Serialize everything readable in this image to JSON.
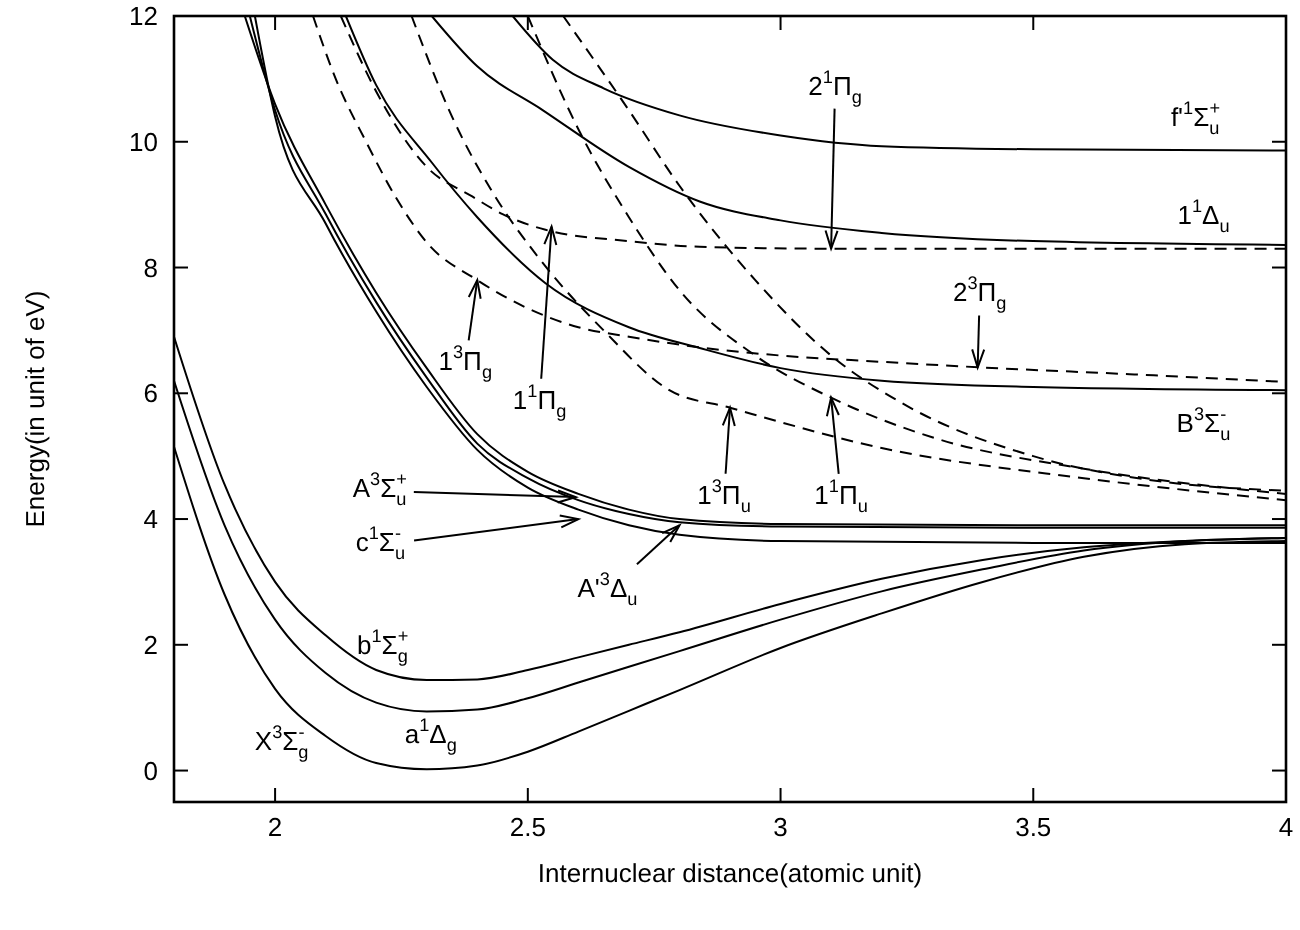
{
  "chart_data": {
    "type": "line",
    "xlabel": "Internuclear distance(atomic unit)",
    "ylabel": "Energy(in unit of eV)",
    "xlim": [
      1.8,
      4
    ],
    "ylim": [
      -0.5,
      12
    ],
    "xticks": [
      2,
      2.5,
      3,
      3.5,
      4
    ],
    "yticks": [
      0,
      2,
      4,
      6,
      8,
      10,
      12
    ],
    "grid": false,
    "series": [
      {
        "color": "#000000",
        "line_style": "solid",
        "x": [
          1.8,
          1.9,
          2.0,
          2.1,
          2.2,
          2.3,
          2.4,
          2.5,
          2.6,
          2.7,
          2.8,
          3.0,
          3.2,
          3.4,
          3.6,
          3.8,
          4.0
        ],
        "values": [
          5.15,
          2.8,
          1.3,
          0.55,
          0.12,
          0.02,
          0.08,
          0.3,
          0.62,
          0.95,
          1.28,
          1.95,
          2.5,
          3.0,
          3.4,
          3.6,
          3.65
        ]
      },
      {
        "color": "#000000",
        "line_style": "solid",
        "x": [
          1.8,
          1.9,
          2.0,
          2.1,
          2.2,
          2.3,
          2.4,
          2.5,
          2.6,
          2.7,
          2.8,
          3.0,
          3.2,
          3.4,
          3.6,
          3.8,
          4.0
        ],
        "values": [
          6.2,
          3.9,
          2.4,
          1.55,
          1.08,
          0.94,
          0.97,
          1.15,
          1.4,
          1.65,
          1.9,
          2.4,
          2.85,
          3.2,
          3.5,
          3.65,
          3.7
        ]
      },
      {
        "color": "#000000",
        "line_style": "solid",
        "x": [
          1.8,
          1.9,
          2.0,
          2.1,
          2.2,
          2.3,
          2.4,
          2.5,
          2.6,
          2.7,
          2.8,
          3.0,
          3.2,
          3.4,
          3.6,
          3.8,
          4.0
        ],
        "values": [
          6.9,
          4.55,
          3.0,
          2.15,
          1.6,
          1.44,
          1.45,
          1.6,
          1.8,
          2.0,
          2.2,
          2.65,
          3.05,
          3.35,
          3.55,
          3.65,
          3.7
        ]
      },
      {
        "color": "#000000",
        "line_style": "solid",
        "x": [
          1.94,
          2.0,
          2.1,
          2.2,
          2.3,
          2.4,
          2.5,
          2.6,
          2.7,
          2.8,
          3.0,
          3.5,
          4.0
        ],
        "values": [
          12,
          10.6,
          9.0,
          7.6,
          6.4,
          5.35,
          4.75,
          4.4,
          4.15,
          4.0,
          3.92,
          3.9,
          3.9
        ]
      },
      {
        "color": "#000000",
        "line_style": "solid",
        "x": [
          1.95,
          2.0,
          2.1,
          2.2,
          2.3,
          2.4,
          2.5,
          2.6,
          2.7,
          2.8,
          3.0,
          3.5,
          4.0
        ],
        "values": [
          12,
          10.5,
          8.85,
          7.45,
          6.25,
          5.2,
          4.65,
          4.3,
          4.08,
          3.95,
          3.88,
          3.86,
          3.86
        ]
      },
      {
        "color": "#000000",
        "line_style": "solid",
        "x": [
          1.96,
          2.0,
          2.1,
          2.2,
          2.3,
          2.4,
          2.5,
          2.6,
          2.7,
          2.8,
          3.0,
          3.5,
          4.0
        ],
        "values": [
          12,
          10.4,
          8.7,
          7.3,
          6.1,
          5.1,
          4.5,
          4.15,
          3.9,
          3.75,
          3.65,
          3.62,
          3.62
        ]
      },
      {
        "color": "#000000",
        "line_style": "solid",
        "x": [
          2.47,
          2.55,
          2.65,
          2.8,
          3.0,
          3.2,
          3.5,
          4.0
        ],
        "values": [
          12,
          11.3,
          10.85,
          10.42,
          10.1,
          9.93,
          9.88,
          9.86
        ]
      },
      {
        "color": "#000000",
        "line_style": "solid",
        "x": [
          2.31,
          2.4,
          2.53,
          2.7,
          2.84,
          3.0,
          3.2,
          3.5,
          4.0
        ],
        "values": [
          12,
          11.2,
          10.5,
          9.6,
          9.05,
          8.75,
          8.55,
          8.42,
          8.36
        ]
      },
      {
        "color": "#000000",
        "line_style": "solid",
        "x": [
          2.14,
          2.2,
          2.31,
          2.4,
          2.535,
          2.7,
          2.84,
          3.0,
          3.2,
          3.5,
          4.0
        ],
        "values": [
          12,
          10.9,
          9.67,
          8.8,
          7.75,
          7.05,
          6.72,
          6.4,
          6.2,
          6.1,
          6.05
        ]
      },
      {
        "color": "#000000",
        "line_style": "dashed",
        "x": [
          2.075,
          2.12,
          2.18,
          2.24,
          2.3,
          2.4,
          2.5,
          2.6,
          2.7,
          2.84,
          3.0,
          3.2,
          3.4,
          3.7,
          4.0
        ],
        "values": [
          12,
          11,
          10,
          9.1,
          8.4,
          7.8,
          7.35,
          7.05,
          6.9,
          6.73,
          6.6,
          6.5,
          6.41,
          6.3,
          6.18
        ]
      },
      {
        "color": "#000000",
        "line_style": "dashed",
        "x": [
          2.13,
          2.2,
          2.3,
          2.39,
          2.45,
          2.535,
          2.7,
          2.84,
          3.1,
          3.5,
          4.0
        ],
        "values": [
          12,
          10.8,
          9.6,
          9.13,
          8.85,
          8.6,
          8.42,
          8.33,
          8.3,
          8.3,
          8.3
        ]
      },
      {
        "color": "#000000",
        "line_style": "dashed",
        "x": [
          2.27,
          2.35,
          2.43,
          2.52,
          2.65,
          2.78,
          2.9,
          3.2,
          3.6,
          4.0
        ],
        "values": [
          12,
          10.4,
          9.2,
          8.17,
          7.0,
          6.05,
          5.77,
          5.13,
          4.65,
          4.3
        ]
      },
      {
        "color": "#000000",
        "line_style": "dashed",
        "x": [
          2.5,
          2.6,
          2.7,
          2.8,
          2.95,
          3.1,
          3.3,
          3.6,
          4.0
        ],
        "values": [
          12,
          10.2,
          8.8,
          7.64,
          6.6,
          5.93,
          5.3,
          4.8,
          4.4
        ]
      },
      {
        "color": "#000000",
        "line_style": "dashed",
        "x": [
          2.57,
          2.7,
          2.8,
          2.95,
          3.1,
          3.25,
          3.5,
          3.75,
          4.0
        ],
        "values": [
          12,
          10.5,
          9.3,
          7.8,
          6.6,
          5.8,
          5.0,
          4.6,
          4.45
        ]
      }
    ],
    "annotations": [
      {
        "text": "2$^{1}$Π$_{g}$",
        "x": 3.1,
        "y": 8.3
      },
      {
        "text": "f'$^{1}$Σ$_{u}$$^{+}$",
        "x": 3.9,
        "y": 9.87
      },
      {
        "text": "1$^{1}$Δ$_{u}$",
        "x": 3.9,
        "y": 8.37
      },
      {
        "text": "2$^{3}$Π$_{g}$",
        "x": 3.39,
        "y": 6.41
      },
      {
        "text": "B$^{3}$Σ$_{u}$$^{-}$",
        "x": 3.9,
        "y": 6.05
      },
      {
        "text": "1$^{3}$Π$_{g}$",
        "x": 2.4,
        "y": 7.8
      },
      {
        "text": "1$^{1}$Π$_{g}$",
        "x": 2.547,
        "y": 8.65
      },
      {
        "text": "1$^{3}$Π$_{u}$",
        "x": 2.9,
        "y": 5.77
      },
      {
        "text": "1$^{1}$Π$_{u}$",
        "x": 3.1,
        "y": 5.93
      },
      {
        "text": "A$^{3}$Σ$_{u}$$^{+}$",
        "x": 2.595,
        "y": 4.35
      },
      {
        "text": "c$^{1}$Σ$_{u}$$^{-}$",
        "x": 2.6,
        "y": 4.0
      },
      {
        "text": "A'$^{3}$Δ$_{u}$",
        "x": 2.8,
        "y": 3.9
      },
      {
        "text": "b$^{1}$Σ$_{g}$$^{+}$",
        "x": 2.3,
        "y": 1.44
      },
      {
        "text": "a$^{1}$Δ$_{g}$",
        "x": 2.3,
        "y": 0.94
      },
      {
        "text": "X$^{3}$Σ$_{g}$$^{-}$",
        "x": 2.1,
        "y": 0.55
      }
    ]
  }
}
